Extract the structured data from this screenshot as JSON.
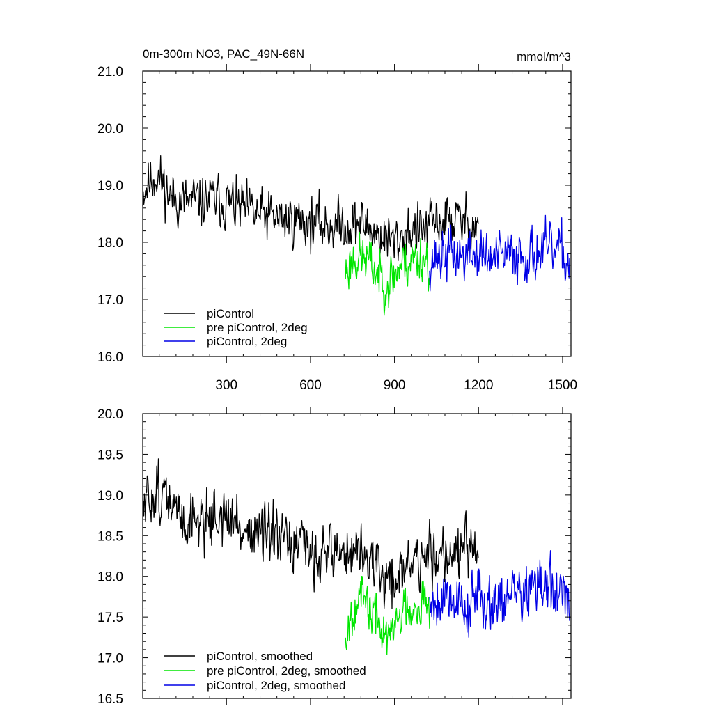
{
  "chart_data": [
    {
      "type": "line",
      "title": "0m-300m NO3, PAC_49N-66N",
      "units_label": "mmol/m^3",
      "xlim": [
        1,
        1530
      ],
      "ylim": [
        16.0,
        21.0
      ],
      "x_ticks": [
        300,
        600,
        900,
        1200,
        1500
      ],
      "x_tick_labels": [
        "300",
        "600",
        "900",
        "1200",
        "1500"
      ],
      "y_ticks": [
        16.0,
        17.0,
        18.0,
        19.0,
        20.0,
        21.0
      ],
      "y_tick_labels": [
        "16.0",
        "17.0",
        "18.0",
        "19.0",
        "20.0",
        "21.0"
      ],
      "legend_position": "bottom-left",
      "series": [
        {
          "name": "piControl",
          "color": "#000000",
          "x_range": [
            1,
            1200
          ],
          "anchors": [
            [
              1,
              18.9
            ],
            [
              50,
              19.2
            ],
            [
              100,
              18.8
            ],
            [
              150,
              18.7
            ],
            [
              200,
              18.7
            ],
            [
              250,
              18.75
            ],
            [
              300,
              18.7
            ],
            [
              350,
              18.6
            ],
            [
              400,
              18.5
            ],
            [
              450,
              18.45
            ],
            [
              500,
              18.4
            ],
            [
              550,
              18.4
            ],
            [
              600,
              18.35
            ],
            [
              650,
              18.3
            ],
            [
              700,
              18.3
            ],
            [
              750,
              18.3
            ],
            [
              800,
              18.3
            ],
            [
              850,
              18.1
            ],
            [
              900,
              18.0
            ],
            [
              950,
              18.2
            ],
            [
              1000,
              18.2
            ],
            [
              1050,
              18.35
            ],
            [
              1100,
              18.4
            ],
            [
              1150,
              18.35
            ],
            [
              1200,
              18.3
            ]
          ],
          "noise": 0.32,
          "seed": 11
        },
        {
          "name": "pre piControl, 2deg",
          "color": "#00e600",
          "x_range": [
            725,
            1025
          ],
          "anchors": [
            [
              725,
              17.5
            ],
            [
              760,
              17.75
            ],
            [
              800,
              17.7
            ],
            [
              850,
              17.4
            ],
            [
              880,
              17.3
            ],
            [
              920,
              17.6
            ],
            [
              960,
              17.7
            ],
            [
              1000,
              17.75
            ],
            [
              1025,
              17.65
            ]
          ],
          "noise": 0.32,
          "seed": 23
        },
        {
          "name": "piControl, 2deg",
          "color": "#0000e6",
          "x_range": [
            1025,
            1525
          ],
          "anchors": [
            [
              1025,
              17.7
            ],
            [
              1100,
              17.8
            ],
            [
              1150,
              17.75
            ],
            [
              1200,
              17.8
            ],
            [
              1250,
              17.7
            ],
            [
              1300,
              17.75
            ],
            [
              1350,
              17.8
            ],
            [
              1400,
              17.8
            ],
            [
              1450,
              17.85
            ],
            [
              1500,
              17.8
            ],
            [
              1525,
              17.6
            ]
          ],
          "noise": 0.33,
          "seed": 37
        }
      ]
    },
    {
      "type": "line",
      "xlim": [
        1,
        1530
      ],
      "ylim": [
        16.5,
        20.0
      ],
      "x_ticks": [
        300,
        600,
        900,
        1200,
        1500
      ],
      "x_tick_labels": [],
      "y_ticks": [
        16.5,
        17.0,
        17.5,
        18.0,
        18.5,
        19.0,
        19.5,
        20.0
      ],
      "y_tick_labels": [
        "16.5",
        "17.0",
        "17.5",
        "18.0",
        "18.5",
        "19.0",
        "19.5",
        "20.0"
      ],
      "legend_position": "bottom-left",
      "series": [
        {
          "name": "piControl, smoothed",
          "color": "#000000",
          "x_range": [
            1,
            1200
          ],
          "anchors": [
            [
              1,
              18.8
            ],
            [
              50,
              19.1
            ],
            [
              100,
              18.85
            ],
            [
              150,
              18.7
            ],
            [
              200,
              18.7
            ],
            [
              250,
              18.75
            ],
            [
              300,
              18.7
            ],
            [
              350,
              18.6
            ],
            [
              400,
              18.55
            ],
            [
              450,
              18.45
            ],
            [
              500,
              18.4
            ],
            [
              550,
              18.35
            ],
            [
              600,
              18.3
            ],
            [
              650,
              18.3
            ],
            [
              700,
              18.3
            ],
            [
              750,
              18.3
            ],
            [
              800,
              18.25
            ],
            [
              850,
              18.0
            ],
            [
              900,
              17.95
            ],
            [
              950,
              18.15
            ],
            [
              1000,
              18.2
            ],
            [
              1050,
              18.3
            ],
            [
              1100,
              18.3
            ],
            [
              1150,
              18.3
            ],
            [
              1200,
              18.2
            ]
          ],
          "noise": 0.26,
          "seed": 51
        },
        {
          "name": "pre piControl, 2deg, smoothed",
          "color": "#00e600",
          "x_range": [
            725,
            1025
          ],
          "anchors": [
            [
              725,
              17.3
            ],
            [
              760,
              17.75
            ],
            [
              800,
              17.65
            ],
            [
              850,
              17.4
            ],
            [
              880,
              17.2
            ],
            [
              920,
              17.55
            ],
            [
              960,
              17.65
            ],
            [
              1000,
              17.75
            ],
            [
              1025,
              17.5
            ]
          ],
          "noise": 0.22,
          "seed": 67
        },
        {
          "name": "piControl, 2deg, smoothed",
          "color": "#0000e6",
          "x_range": [
            1025,
            1525
          ],
          "anchors": [
            [
              1025,
              17.7
            ],
            [
              1100,
              17.8
            ],
            [
              1150,
              17.6
            ],
            [
              1200,
              17.75
            ],
            [
              1250,
              17.7
            ],
            [
              1300,
              17.75
            ],
            [
              1350,
              17.8
            ],
            [
              1400,
              17.85
            ],
            [
              1450,
              17.85
            ],
            [
              1500,
              17.75
            ],
            [
              1525,
              17.5
            ]
          ],
          "noise": 0.26,
          "seed": 79
        }
      ]
    }
  ]
}
